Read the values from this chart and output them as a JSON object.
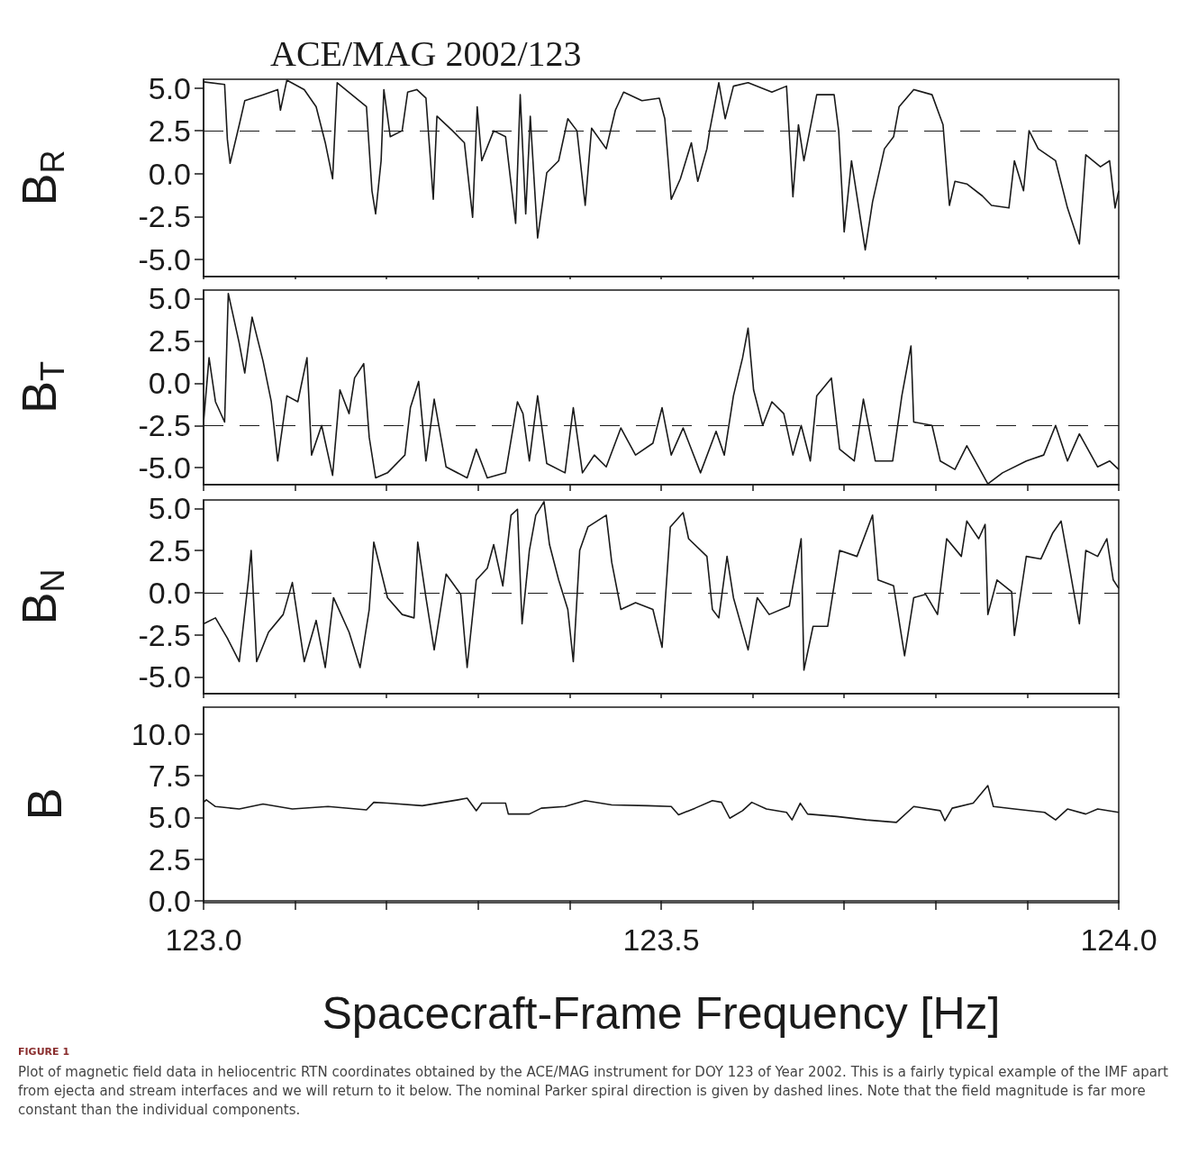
{
  "chart_data": [
    {
      "type": "line",
      "title": "ACE/MAG 2002/123",
      "ylabel": "B$_{R}$",
      "tick_labels": "y",
      "xlim": [
        123,
        124
      ],
      "ylim": [
        -6,
        5.5
      ],
      "xticks": [
        {
          "value": 123,
          "label": null
        },
        {
          "value": 123.1,
          "label": null
        },
        {
          "value": 123.2,
          "label": null
        },
        {
          "value": 123.3,
          "label": null
        },
        {
          "value": 123.4,
          "label": null
        },
        {
          "value": 123.5,
          "label": null
        },
        {
          "value": 123.6,
          "label": null
        },
        {
          "value": 123.7,
          "label": null
        },
        {
          "value": 123.8,
          "label": null
        },
        {
          "value": 123.9,
          "label": null
        },
        {
          "value": 124,
          "label": null
        }
      ],
      "yticks": [
        {
          "value": -5,
          "label": "-5.0"
        },
        {
          "value": -2.5,
          "label": "-2.5"
        },
        {
          "value": 0,
          "label": "0.0"
        },
        {
          "value": 2.5,
          "label": "2.5"
        },
        {
          "value": 5,
          "label": "5.0"
        }
      ],
      "ref_lines": [
        {
          "axis": "y",
          "value": 2.5,
          "color": "#1a1a1a",
          "line_style": "dashed"
        }
      ],
      "series": [
        {
          "color": "#1a1a1a",
          "x": [
            123.0,
            123.023,
            123.026,
            123.029,
            123.039,
            123.045,
            123.065,
            123.081,
            123.084,
            123.091,
            123.11,
            123.123,
            123.133,
            123.141,
            123.146,
            123.162,
            123.178,
            123.184,
            123.188,
            123.194,
            123.197,
            123.204,
            123.217,
            123.223,
            123.233,
            123.243,
            123.251,
            123.255,
            123.272,
            123.285,
            123.294,
            123.299,
            123.304,
            123.317,
            123.33,
            123.341,
            123.346,
            123.352,
            123.357,
            123.365,
            123.375,
            123.388,
            123.398,
            123.408,
            123.417,
            123.424,
            123.44,
            123.45,
            123.459,
            123.479,
            123.498,
            123.504,
            123.511,
            123.521,
            123.533,
            123.54,
            123.55,
            123.553,
            123.563,
            123.57,
            123.579,
            123.595,
            123.621,
            123.637,
            123.644,
            123.65,
            123.656,
            123.67,
            123.689,
            123.694,
            123.7,
            123.708,
            123.723,
            123.731,
            123.744,
            123.754,
            123.76,
            123.776,
            123.796,
            123.808,
            123.815,
            123.821,
            123.834,
            123.851,
            123.861,
            123.88,
            123.886,
            123.896,
            123.902,
            123.912,
            123.931,
            123.944,
            123.957,
            123.964,
            123.98,
            123.99,
            123.996,
            124.0
          ],
          "values": [
            5.35,
            5.2,
            2.0,
            0.6,
            2.85,
            4.25,
            4.6,
            4.9,
            3.7,
            5.45,
            4.9,
            3.9,
            1.8,
            -0.3,
            5.3,
            4.6,
            3.9,
            -1.0,
            -2.35,
            0.75,
            4.9,
            2.15,
            2.5,
            4.75,
            4.9,
            4.4,
            -1.5,
            3.35,
            2.5,
            1.8,
            -2.55,
            3.9,
            0.75,
            2.5,
            2.15,
            -2.9,
            4.6,
            -2.35,
            3.35,
            -3.75,
            0.05,
            0.75,
            3.2,
            2.5,
            -1.85,
            2.65,
            1.45,
            3.7,
            4.75,
            4.25,
            4.4,
            3.2,
            -1.5,
            -0.3,
            1.8,
            -0.45,
            1.45,
            2.5,
            5.3,
            3.2,
            5.1,
            5.3,
            4.75,
            5.1,
            -1.35,
            2.85,
            0.75,
            4.6,
            4.6,
            2.5,
            -3.4,
            0.75,
            -4.45,
            -1.65,
            1.45,
            2.15,
            3.9,
            4.9,
            4.6,
            2.85,
            -1.85,
            -0.45,
            -0.6,
            -1.3,
            -1.85,
            -2.0,
            0.75,
            -1.0,
            2.5,
            1.45,
            0.75,
            -2.0,
            -4.1,
            1.1,
            0.4,
            0.75,
            -2.0,
            -1.0
          ]
        }
      ]
    },
    {
      "type": "line",
      "ylabel": "B$_{T}$",
      "tick_labels": "y",
      "xlim": [
        123,
        124
      ],
      "ylim": [
        -6,
        5.5
      ],
      "xticks": [
        {
          "value": 123,
          "label": null
        },
        {
          "value": 123.1,
          "label": null
        },
        {
          "value": 123.2,
          "label": null
        },
        {
          "value": 123.3,
          "label": null
        },
        {
          "value": 123.4,
          "label": null
        },
        {
          "value": 123.5,
          "label": null
        },
        {
          "value": 123.6,
          "label": null
        },
        {
          "value": 123.7,
          "label": null
        },
        {
          "value": 123.8,
          "label": null
        },
        {
          "value": 123.9,
          "label": null
        },
        {
          "value": 124,
          "label": null
        }
      ],
      "yticks": [
        {
          "value": -5,
          "label": "-5.0"
        },
        {
          "value": -2.5,
          "label": "-2.5"
        },
        {
          "value": 0,
          "label": "0.0"
        },
        {
          "value": 2.5,
          "label": "2.5"
        },
        {
          "value": 5,
          "label": "5.0"
        }
      ],
      "ref_lines": [
        {
          "axis": "y",
          "value": -2.5,
          "color": "#1a1a1a",
          "line_style": "dashed"
        }
      ],
      "series": [
        {
          "color": "#1a1a1a",
          "x": [
            123.0,
            123.006,
            123.013,
            123.023,
            123.027,
            123.039,
            123.045,
            123.053,
            123.065,
            123.074,
            123.081,
            123.091,
            123.103,
            123.113,
            123.118,
            123.129,
            123.141,
            123.149,
            123.159,
            123.165,
            123.175,
            123.181,
            123.188,
            123.201,
            123.22,
            123.226,
            123.235,
            123.243,
            123.252,
            123.265,
            123.288,
            123.298,
            123.31,
            123.33,
            123.343,
            123.349,
            123.356,
            123.365,
            123.375,
            123.395,
            123.404,
            123.414,
            123.427,
            123.44,
            123.456,
            123.472,
            123.491,
            123.501,
            123.511,
            123.524,
            123.543,
            123.56,
            123.569,
            123.579,
            123.589,
            123.595,
            123.601,
            123.611,
            123.621,
            123.634,
            123.644,
            123.653,
            123.663,
            123.67,
            123.686,
            123.695,
            123.711,
            123.721,
            123.734,
            123.753,
            123.763,
            123.773,
            123.776,
            123.796,
            123.805,
            123.821,
            123.834,
            123.857,
            123.873,
            123.899,
            123.918,
            123.931,
            123.944,
            123.957,
            123.977,
            123.99,
            124.0
          ],
          "values": [
            -2.3,
            1.5,
            -1.1,
            -2.3,
            5.3,
            2.35,
            0.6,
            3.9,
            1.3,
            -1.1,
            -4.6,
            -0.75,
            -1.1,
            1.5,
            -4.25,
            -2.5,
            -5.45,
            -0.4,
            -1.8,
            0.3,
            1.15,
            -3.2,
            -5.6,
            -5.3,
            -4.25,
            -1.45,
            0.1,
            -4.6,
            -0.95,
            -4.95,
            -5.6,
            -3.9,
            -5.6,
            -5.3,
            -1.1,
            -1.8,
            -4.6,
            -0.75,
            -4.75,
            -5.3,
            -1.45,
            -5.3,
            -4.25,
            -4.95,
            -2.65,
            -4.25,
            -3.55,
            -1.45,
            -4.25,
            -2.65,
            -5.3,
            -2.85,
            -4.25,
            -0.75,
            1.5,
            3.25,
            -0.4,
            -2.5,
            -1.1,
            -1.8,
            -4.25,
            -2.5,
            -4.6,
            -0.75,
            0.3,
            -3.9,
            -4.6,
            -0.95,
            -4.6,
            -4.6,
            -0.75,
            2.2,
            -2.3,
            -2.5,
            -4.6,
            -5.1,
            -3.7,
            -5.95,
            -5.3,
            -4.6,
            -4.25,
            -2.5,
            -4.6,
            -3.0,
            -4.95,
            -4.6,
            -5.1
          ]
        }
      ]
    },
    {
      "type": "line",
      "ylabel": "B$_{N}$",
      "tick_labels": "y",
      "xlim": [
        123,
        124
      ],
      "ylim": [
        -6,
        5.5
      ],
      "xticks": [
        {
          "value": 123,
          "label": null
        },
        {
          "value": 123.1,
          "label": null
        },
        {
          "value": 123.2,
          "label": null
        },
        {
          "value": 123.3,
          "label": null
        },
        {
          "value": 123.4,
          "label": null
        },
        {
          "value": 123.5,
          "label": null
        },
        {
          "value": 123.6,
          "label": null
        },
        {
          "value": 123.7,
          "label": null
        },
        {
          "value": 123.8,
          "label": null
        },
        {
          "value": 123.9,
          "label": null
        },
        {
          "value": 124,
          "label": null
        }
      ],
      "yticks": [
        {
          "value": -5,
          "label": "-5.0"
        },
        {
          "value": -2.5,
          "label": "-2.5"
        },
        {
          "value": 0,
          "label": "0.0"
        },
        {
          "value": 2.5,
          "label": "2.5"
        },
        {
          "value": 5,
          "label": "5.0"
        }
      ],
      "ref_lines": [
        {
          "axis": "y",
          "value": 0,
          "color": "#1a1a1a",
          "line_style": "dashed"
        }
      ],
      "series": [
        {
          "color": "#1a1a1a",
          "x": [
            123.0,
            123.013,
            123.026,
            123.039,
            123.049,
            123.052,
            123.058,
            123.071,
            123.087,
            123.097,
            123.11,
            123.123,
            123.133,
            123.142,
            123.159,
            123.171,
            123.181,
            123.186,
            123.201,
            123.217,
            123.23,
            123.234,
            123.243,
            123.252,
            123.265,
            123.281,
            123.288,
            123.298,
            123.31,
            123.317,
            123.327,
            123.336,
            123.343,
            123.348,
            123.356,
            123.363,
            123.372,
            123.378,
            123.388,
            123.398,
            123.404,
            123.411,
            123.42,
            123.44,
            123.446,
            123.456,
            123.472,
            123.491,
            123.501,
            123.51,
            123.524,
            123.53,
            123.55,
            123.556,
            123.563,
            123.572,
            123.579,
            123.595,
            123.605,
            123.618,
            123.64,
            123.653,
            123.656,
            123.666,
            123.682,
            123.695,
            123.714,
            123.731,
            123.737,
            123.754,
            123.766,
            123.776,
            123.789,
            123.802,
            123.812,
            123.828,
            123.834,
            123.847,
            123.854,
            123.857,
            123.867,
            123.883,
            123.886,
            123.899,
            123.915,
            123.928,
            123.937,
            123.944,
            123.957,
            123.964,
            123.977,
            123.987,
            123.994,
            124.0
          ],
          "values": [
            -1.85,
            -1.5,
            -2.7,
            -4.1,
            0.75,
            2.5,
            -4.1,
            -2.35,
            -1.3,
            0.6,
            -4.1,
            -1.65,
            -4.45,
            -0.3,
            -2.35,
            -4.45,
            -1.0,
            3.0,
            -0.3,
            -1.3,
            -1.5,
            3.0,
            -0.3,
            -3.4,
            1.1,
            -0.1,
            -4.45,
            0.75,
            1.45,
            2.85,
            0.4,
            4.6,
            4.95,
            -1.85,
            2.5,
            4.6,
            5.4,
            2.85,
            0.75,
            -1.0,
            -4.1,
            2.5,
            3.9,
            4.6,
            1.8,
            -1.0,
            -0.6,
            -1.0,
            -3.25,
            3.9,
            4.75,
            3.2,
            2.15,
            -1.0,
            -1.5,
            2.15,
            -0.3,
            -3.4,
            -0.3,
            -1.3,
            -0.8,
            3.2,
            -4.6,
            -2.0,
            -2.0,
            2.5,
            2.15,
            4.6,
            0.75,
            0.4,
            -3.75,
            -0.3,
            -0.1,
            -1.3,
            3.2,
            2.15,
            4.25,
            3.2,
            4.05,
            -1.3,
            0.75,
            0.05,
            -2.55,
            2.15,
            2.0,
            3.55,
            4.25,
            2.15,
            -1.85,
            2.5,
            2.15,
            3.2,
            0.75,
            0.25
          ]
        }
      ]
    },
    {
      "type": "line",
      "ylabel": "B",
      "xlabel": "Spacecraft-Frame Frequency [Hz]",
      "xlim": [
        123,
        124
      ],
      "ylim": [
        0,
        11.6
      ],
      "xticks": [
        {
          "value": 123,
          "label": "123.0"
        },
        {
          "value": 123.1,
          "label": null
        },
        {
          "value": 123.2,
          "label": null
        },
        {
          "value": 123.3,
          "label": null
        },
        {
          "value": 123.4,
          "label": null
        },
        {
          "value": 123.5,
          "label": "123.5"
        },
        {
          "value": 123.6,
          "label": null
        },
        {
          "value": 123.7,
          "label": null
        },
        {
          "value": 123.8,
          "label": null
        },
        {
          "value": 123.9,
          "label": null
        },
        {
          "value": 124,
          "label": "124.0"
        }
      ],
      "yticks": [
        {
          "value": 0,
          "label": "0.0"
        },
        {
          "value": 2.5,
          "label": "2.5"
        },
        {
          "value": 5,
          "label": "5.0"
        },
        {
          "value": 7.5,
          "label": "7.5"
        },
        {
          "value": 10,
          "label": "10.0"
        }
      ],
      "annotations": [
        "FIGURE 1",
        "Plot of magnetic field data in heliocentric RTN coordinates obtained by the ACE/MAG instrument for DOY 123 of Year 2002. This is a fairly typical example of the IMF apart from ejecta and stream interfaces and we will return to it below. The nominal Parker spiral direction is given by dashed lines. Note that the field magnitude is far more constant than the individual components."
      ],
      "series": [
        {
          "color": "#1a1a1a",
          "x": [
            123.0,
            123.003,
            123.013,
            123.039,
            123.065,
            123.097,
            123.136,
            123.178,
            123.186,
            123.201,
            123.239,
            123.278,
            123.288,
            123.298,
            123.304,
            123.33,
            123.333,
            123.356,
            123.369,
            123.395,
            123.417,
            123.446,
            123.485,
            123.511,
            123.519,
            123.537,
            123.556,
            123.566,
            123.575,
            123.589,
            123.599,
            123.615,
            123.637,
            123.643,
            123.652,
            123.66,
            123.692,
            123.724,
            123.757,
            123.776,
            123.805,
            123.81,
            123.818,
            123.841,
            123.857,
            123.863,
            123.886,
            123.919,
            123.931,
            123.944,
            123.964,
            123.977,
            124.0
          ],
          "values": [
            5.9,
            6.05,
            5.65,
            5.5,
            5.8,
            5.5,
            5.65,
            5.45,
            5.9,
            5.85,
            5.7,
            6.05,
            6.15,
            5.4,
            5.85,
            5.85,
            5.2,
            5.2,
            5.55,
            5.65,
            6.0,
            5.75,
            5.7,
            5.65,
            5.15,
            5.55,
            6.0,
            5.9,
            4.95,
            5.4,
            5.9,
            5.5,
            5.3,
            4.85,
            5.85,
            5.2,
            5.05,
            4.85,
            4.7,
            5.65,
            5.4,
            4.8,
            5.55,
            5.85,
            6.9,
            5.65,
            5.5,
            5.3,
            4.85,
            5.5,
            5.2,
            5.5,
            5.3
          ]
        }
      ]
    }
  ]
}
